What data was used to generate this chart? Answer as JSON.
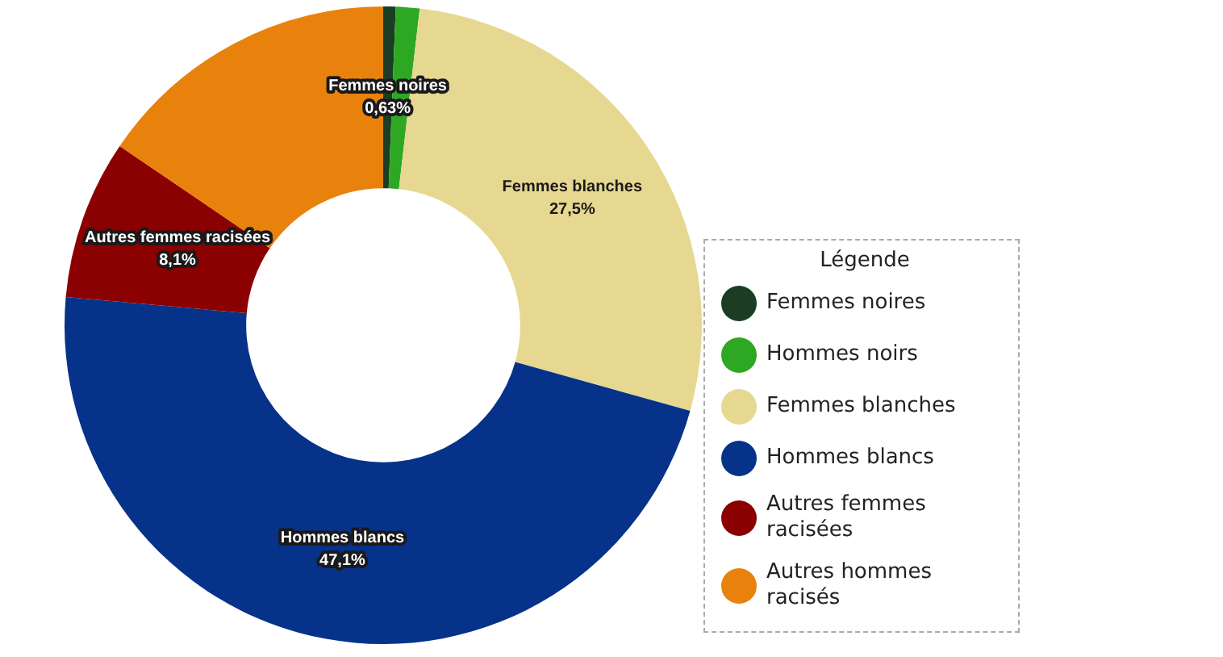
{
  "chart_data": {
    "type": "donut",
    "legend_title": "Légende",
    "legend": "right",
    "categories": [
      "Femmes noires",
      "Hommes noirs",
      "Femmes blanches",
      "Hommes blancs",
      "Autres femmes racisées",
      "Autres hommes racisés"
    ],
    "values": [
      0.63,
      1.2,
      27.5,
      47.1,
      8.1,
      15.5
    ],
    "colors": [
      "#1a3d23",
      "#2ea823",
      "#e6d890",
      "#06328a",
      "#8b0000",
      "#e8820c"
    ],
    "value_labels": [
      "0,63%",
      null,
      "27,5%",
      "47,1%",
      "8,1%",
      null
    ]
  }
}
